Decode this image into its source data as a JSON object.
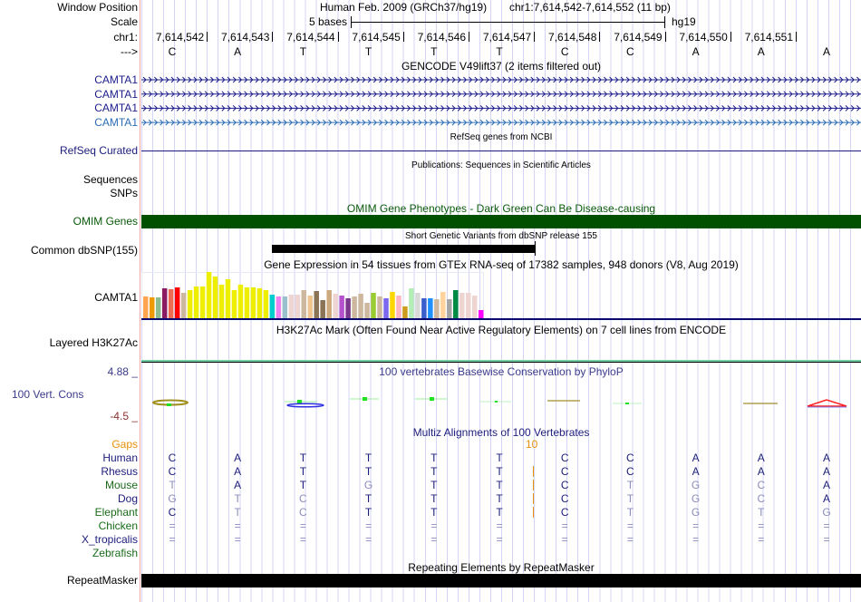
{
  "labels": {
    "window_position": "Window Position",
    "scale": "Scale",
    "chrom": "chr1:",
    "strand": "--->",
    "refseq": "RefSeq Curated",
    "sequences": "Sequences",
    "snps": "SNPs",
    "omim": "OMIM Genes",
    "dbsnp": "Common dbSNP(155)",
    "gtex_gene": "CAMTA1",
    "h3k27ac": "Layered H3K27Ac",
    "cons_max": "4.88 _",
    "cons_label": "100 Vert. Cons",
    "cons_min": "-4.5 _",
    "gaps": "Gaps",
    "repeatmasker": "RepeatMasker"
  },
  "header": {
    "assembly": "Human Feb. 2009 (GRCh37/hg19)",
    "position": "chr1:7,614,542-7,614,552 (11 bp)",
    "scale_text": "5 bases",
    "db": "hg19"
  },
  "ruler_positions": [
    "7,614,542",
    "7,614,543",
    "7,614,544",
    "7,614,545",
    "7,614,546",
    "7,614,547",
    "7,614,548",
    "7,614,549",
    "7,614,550",
    "7,614,551"
  ],
  "sequence": [
    "C",
    "A",
    "T",
    "T",
    "T",
    "T",
    "C",
    "C",
    "A",
    "A",
    "A"
  ],
  "tracks": {
    "gencode_title": "GENCODE V49lift37 (2 items filtered out)",
    "gencode_genes": [
      {
        "name": "CAMTA1",
        "color": "#1c1c8c"
      },
      {
        "name": "CAMTA1",
        "color": "#1c1c8c"
      },
      {
        "name": "CAMTA1",
        "color": "#1c1c8c"
      },
      {
        "name": "CAMTA1",
        "color": "#2b6cb5"
      }
    ],
    "refseq_title": "RefSeq genes from NCBI",
    "publications_title": "Publications: Sequences in Scientific Articles",
    "omim_title": "OMIM Gene Phenotypes - Dark Green Can Be Disease-causing",
    "dbsnp_title": "Short Genetic Variants from dbSNP release 155",
    "gtex_title": "Gene Expression in 54 tissues from GTEx RNA-seq of 17382 samples, 948 donors (V8, Aug 2019)",
    "h3k27ac_title": "H3K27Ac Mark (Often Found Near Active Regulatory Elements) on 7 cell lines from ENCODE",
    "cons_title": "100 vertebrates Basewise Conservation by PhyloP",
    "multiz_title": "Multiz Alignments of 100 Vertebrates",
    "gap_count": "10",
    "repeatmasker_title": "Repeating Elements by RepeatMasker"
  },
  "gtex": {
    "values": [
      72,
      69,
      69,
      99,
      96,
      102,
      84,
      93,
      105,
      105,
      153,
      138,
      111,
      129,
      93,
      111,
      102,
      102,
      99,
      93,
      78,
      72,
      72,
      78,
      78,
      93,
      75,
      90,
      60,
      93,
      81,
      75,
      66,
      72,
      81,
      51,
      84,
      72,
      66,
      87,
      75,
      39,
      99,
      84,
      66,
      66,
      63,
      87,
      63,
      93,
      84,
      84,
      75,
      27
    ],
    "colors": [
      "#FFA54F",
      "#EE9A00",
      "#8FBC8F",
      "#8B1C62",
      "#EE6A50",
      "#FF0000",
      "#CDB79E",
      "#EEEE00",
      "#EEEE00",
      "#EEEE00",
      "#EEEE00",
      "#EEEE00",
      "#EEEE00",
      "#EEEE00",
      "#EEEE00",
      "#EEEE00",
      "#EEEE00",
      "#EEEE00",
      "#EEEE00",
      "#EEEE00",
      "#00CDCD",
      "#EE82EE",
      "#9AC0CD",
      "#EED5D2",
      "#EED5D2",
      "#CDB79E",
      "#EEC591",
      "#8B7355",
      "#8B7355",
      "#CDAA7D",
      "#EED5D2",
      "#B452CD",
      "#7A378B",
      "#CDB79E",
      "#CDB79E",
      "#CDB79E",
      "#9ACD32",
      "#CDB79E",
      "#7B68EE",
      "#FFD700",
      "#FFB6C1",
      "#CD9B1D",
      "#B4EEB4",
      "#D9D9D9",
      "#3A5FCD",
      "#1E90FF",
      "#CDB79E",
      "#FFD39B",
      "#A6A6A6",
      "#008B45",
      "#EED5D2",
      "#EED5D2",
      "#EED5D2",
      "#FF00FF"
    ]
  },
  "multiz": [
    {
      "species": "Human",
      "color": "#1c1c7c",
      "bases": [
        "C",
        "A",
        "T",
        "T",
        "T",
        "T",
        "C",
        "C",
        "A",
        "A",
        "A"
      ],
      "faded": [
        0,
        0,
        0,
        0,
        0,
        0,
        0,
        0,
        0,
        0,
        0
      ],
      "gap": false
    },
    {
      "species": "Rhesus",
      "color": "#1c1c7c",
      "bases": [
        "C",
        "A",
        "T",
        "T",
        "T",
        "T",
        "C",
        "C",
        "A",
        "A",
        "A"
      ],
      "faded": [
        0,
        0,
        0,
        0,
        0,
        0,
        0,
        0,
        0,
        0,
        0
      ],
      "gap": true
    },
    {
      "species": "Mouse",
      "color": "#1a6b1a",
      "bases": [
        "T",
        "A",
        "T",
        "G",
        "T",
        "T",
        "C",
        "T",
        "G",
        "C",
        "A"
      ],
      "faded": [
        1,
        0,
        0,
        1,
        0,
        0,
        0,
        1,
        1,
        1,
        0
      ],
      "gap": true
    },
    {
      "species": "Dog",
      "color": "#1c1c7c",
      "bases": [
        "G",
        "T",
        "C",
        "T",
        "T",
        "T",
        "C",
        "T",
        "G",
        "C",
        "A"
      ],
      "faded": [
        1,
        1,
        1,
        0,
        0,
        0,
        0,
        1,
        1,
        1,
        0
      ],
      "gap": true
    },
    {
      "species": "Elephant",
      "color": "#1a6b1a",
      "bases": [
        "C",
        "T",
        "C",
        "T",
        "T",
        "T",
        "C",
        "T",
        "G",
        "T",
        "G"
      ],
      "faded": [
        0,
        1,
        1,
        0,
        0,
        0,
        0,
        1,
        1,
        1,
        1
      ],
      "gap": true
    },
    {
      "species": "Chicken",
      "color": "#1a6b1a",
      "bases": [
        "=",
        "=",
        "=",
        "=",
        "=",
        "=",
        "=",
        "=",
        "=",
        "=",
        "="
      ],
      "faded": [
        1,
        1,
        1,
        1,
        1,
        1,
        1,
        1,
        1,
        1,
        1
      ],
      "gap": false
    },
    {
      "species": "X_tropicalis",
      "color": "#1c1c7c",
      "bases": [
        "=",
        "=",
        "=",
        "=",
        "=",
        "=",
        "=",
        "=",
        "=",
        "=",
        "="
      ],
      "faded": [
        1,
        1,
        1,
        1,
        1,
        1,
        1,
        1,
        1,
        1,
        1
      ],
      "gap": false
    },
    {
      "species": "Zebrafish",
      "color": "#1a6b1a",
      "bases": [],
      "faded": [],
      "gap": false
    }
  ],
  "colors": {
    "omim_bar": "#005000",
    "gap_orange": "#e8900a",
    "cons_label": "#3a3a8a",
    "cons_min": "#8b3030"
  }
}
